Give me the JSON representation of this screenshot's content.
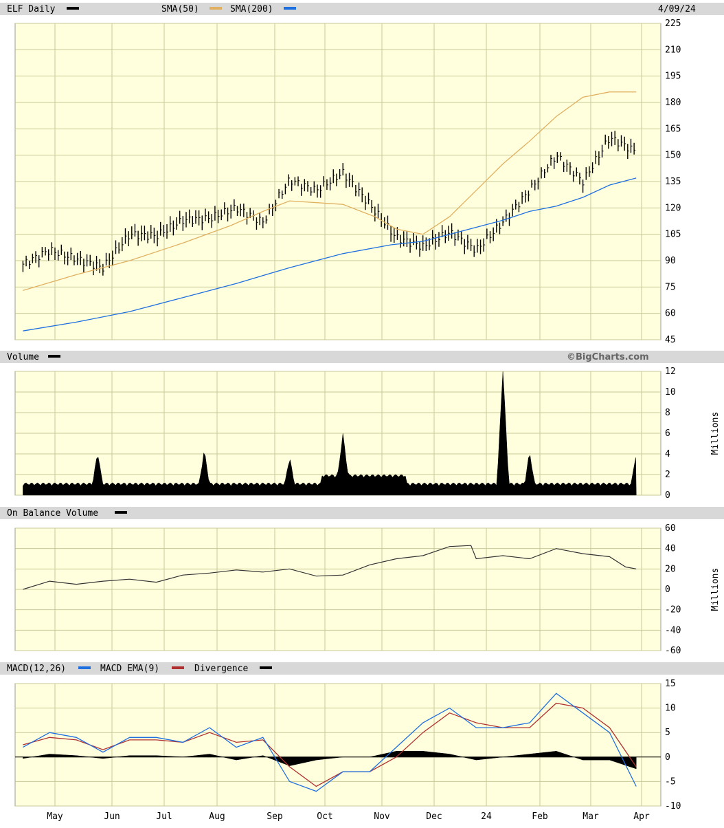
{
  "header": {
    "symbol_label": "ELF Daily",
    "sma50_label": "SMA(50)",
    "sma200_label": "SMA(200)",
    "date_label": "4/09/24",
    "colors": {
      "bar": "#000000",
      "sma50": "#e0b060",
      "sma200": "#1e6fe0"
    }
  },
  "volume_header": {
    "label": "Volume",
    "watermark": "©BigCharts.com"
  },
  "obv_header": {
    "label": "On Balance Volume"
  },
  "macd_header": {
    "macd_label": "MACD(12,26)",
    "ema_label": "MACD EMA(9)",
    "div_label": "Divergence",
    "colors": {
      "macd": "#1e6fe0",
      "ema": "#b03030",
      "div": "#000000"
    }
  },
  "x_axis": {
    "labels": [
      "May",
      "Jun",
      "Jul",
      "Aug",
      "Sep",
      "Oct",
      "Nov",
      "Dec",
      "24",
      "Feb",
      "Mar",
      "Apr"
    ]
  },
  "chart_data": [
    {
      "type": "line",
      "panel": "price",
      "title": "ELF Daily",
      "ylim": [
        45,
        225
      ],
      "y_ticks": [
        225,
        210,
        195,
        180,
        165,
        150,
        135,
        120,
        105,
        90,
        75,
        60,
        45
      ],
      "grid": true,
      "series": [
        {
          "name": "ELF Daily",
          "style": "ohlc",
          "months": [
            0,
            0.5,
            1,
            1.5,
            2,
            2.5,
            3,
            3.5,
            4,
            4.5,
            5,
            5.5,
            6,
            6.5,
            7,
            7.5,
            8,
            8.5,
            9,
            9.5,
            10,
            10.5,
            11,
            11.5
          ],
          "values": [
            88,
            96,
            91,
            86,
            105,
            104,
            113,
            114,
            120,
            112,
            136,
            130,
            140,
            122,
            103,
            98,
            106,
            96,
            112,
            130,
            150,
            135,
            160,
            152
          ]
        },
        {
          "name": "SMA(50)",
          "months": [
            0,
            1,
            2,
            3,
            3.9,
            4.5,
            5,
            6,
            6.6,
            7,
            7.5,
            8,
            8.5,
            9,
            9.5,
            10,
            10.5,
            11,
            11.5
          ],
          "values": [
            73,
            82,
            90,
            100,
            110,
            118,
            124,
            122,
            115,
            108,
            105,
            115,
            130,
            145,
            158,
            172,
            183,
            186,
            186
          ]
        },
        {
          "name": "SMA(200)",
          "months": [
            0,
            1,
            2,
            3,
            4,
            5,
            6,
            6.9,
            7.5,
            8,
            9,
            9.5,
            10,
            10.5,
            11,
            11.5
          ],
          "values": [
            50,
            55,
            61,
            69,
            77,
            86,
            94,
            99,
            101,
            105,
            113,
            118,
            121,
            126,
            133,
            137
          ]
        }
      ]
    },
    {
      "type": "bar",
      "panel": "volume",
      "ylabel": "Millions",
      "ylim": [
        0,
        12
      ],
      "y_ticks": [
        12,
        10,
        8,
        6,
        4,
        2,
        0
      ],
      "series": [
        {
          "name": "Volume",
          "months": [
            0,
            0.5,
            1,
            1.4,
            2,
            2.5,
            3,
            3.4,
            4,
            4.5,
            5,
            5.5,
            6,
            6.5,
            7,
            7.5,
            8,
            8.5,
            9,
            9.5,
            10,
            10.5,
            11,
            11.5
          ],
          "values": [
            1.0,
            1.2,
            1.0,
            4.0,
            1.0,
            1.2,
            1.0,
            4.2,
            1.3,
            1.5,
            3.5,
            1.5,
            4.9,
            1.8,
            1.2,
            1.5,
            1.2,
            1.2,
            11.9,
            4.0,
            1.2,
            1.8,
            1.4,
            3.9
          ]
        }
      ]
    },
    {
      "type": "line",
      "panel": "obv",
      "ylabel": "Millions",
      "ylim": [
        -60,
        60
      ],
      "y_ticks": [
        60,
        40,
        20,
        0,
        -20,
        -40,
        -60
      ],
      "series": [
        {
          "name": "On Balance Volume",
          "months": [
            0,
            0.5,
            1,
            1.5,
            2,
            2.5,
            3,
            3.5,
            4,
            4.5,
            5,
            5.5,
            6,
            6.5,
            7,
            7.5,
            8,
            8.4,
            8.5,
            9,
            9.5,
            10,
            10.5,
            11,
            11.3,
            11.5
          ],
          "values": [
            0,
            8,
            5,
            8,
            10,
            7,
            14,
            16,
            19,
            17,
            20,
            13,
            14,
            24,
            30,
            33,
            42,
            43,
            30,
            33,
            30,
            40,
            35,
            32,
            22,
            20
          ]
        }
      ]
    },
    {
      "type": "line",
      "panel": "macd",
      "ylim": [
        -10,
        15
      ],
      "y_ticks": [
        15,
        10,
        5,
        0,
        -5,
        -10
      ],
      "series": [
        {
          "name": "MACD(12,26)",
          "months": [
            0,
            0.5,
            1,
            1.5,
            2,
            2.5,
            3,
            3.5,
            4,
            4.5,
            5,
            5.5,
            6,
            6.5,
            7,
            7.5,
            8,
            8.5,
            9,
            9.5,
            10,
            10.5,
            11,
            11.5
          ],
          "values": [
            2,
            5,
            4,
            1,
            4,
            4,
            3,
            6,
            2,
            4,
            -5,
            -7,
            -3,
            -3,
            2,
            7,
            10,
            6,
            6,
            7,
            13,
            9,
            5,
            -6
          ]
        },
        {
          "name": "MACD EMA(9)",
          "months": [
            0,
            0.5,
            1,
            1.5,
            2,
            2.5,
            3,
            3.5,
            4,
            4.5,
            5,
            5.5,
            6,
            6.5,
            7,
            7.5,
            8,
            8.5,
            9,
            9.5,
            10,
            10.5,
            11,
            11.5
          ],
          "values": [
            2.5,
            4,
            3.5,
            1.5,
            3.5,
            3.5,
            3,
            5,
            3,
            3.5,
            -2,
            -6,
            -3,
            -3,
            0,
            5,
            9,
            7,
            6,
            6,
            11,
            10,
            6,
            -2
          ]
        }
      ]
    }
  ]
}
